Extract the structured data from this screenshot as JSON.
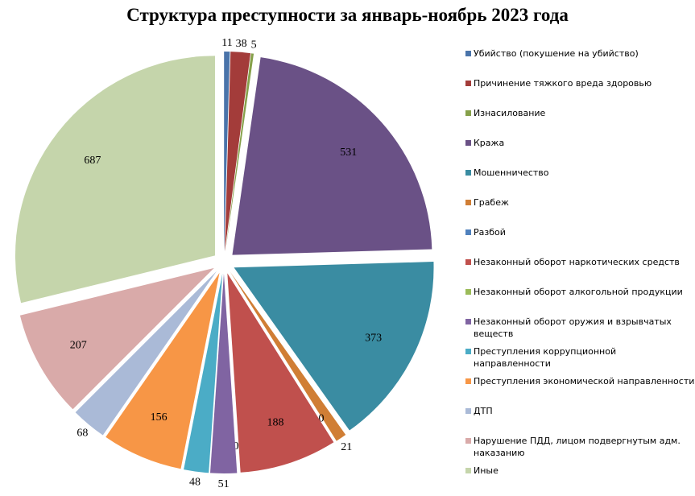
{
  "chart_data": {
    "type": "pie",
    "title": "Структура преступности за январь-ноябрь 2023 года",
    "legend_position": "right",
    "slices": [
      {
        "label": "Убийство (покушение на убийство)",
        "value": 11,
        "color": "#4a74aa"
      },
      {
        "label": "Причинение тяжкого вреда здоровью",
        "value": 38,
        "color": "#a33c3a"
      },
      {
        "label": "Изнасилование",
        "value": 5,
        "color": "#86a04a"
      },
      {
        "label": "Кража",
        "value": 531,
        "color": "#6a5186"
      },
      {
        "label": "Мошенничество",
        "value": 373,
        "color": "#3a8ca2"
      },
      {
        "label": "Грабеж",
        "value": 21,
        "color": "#d07e35"
      },
      {
        "label": "Разбой",
        "value": 0,
        "color": "#4f81bd"
      },
      {
        "label": "Незаконный оборот наркотических средств",
        "value": 188,
        "color": "#c0504d"
      },
      {
        "label": "Незаконный оборот алкогольной продукции",
        "value": 0,
        "color": "#9bbb59"
      },
      {
        "label": "Незаконный оборот оружия и взрывчатых веществ",
        "value": 51,
        "color": "#8064a2"
      },
      {
        "label": "Преступления коррупционной направленности",
        "value": 48,
        "color": "#4bacc6"
      },
      {
        "label": "Преступления экономической направленности",
        "value": 156,
        "color": "#f79646"
      },
      {
        "label": "ДТП",
        "value": 68,
        "color": "#aabad7"
      },
      {
        "label": "Нарушение ПДД, лицом подвергнутым адм. наказанию",
        "value": 207,
        "color": "#d9aaa9"
      },
      {
        "label": "Иные",
        "value": 687,
        "color": "#c5d5ab"
      }
    ]
  }
}
